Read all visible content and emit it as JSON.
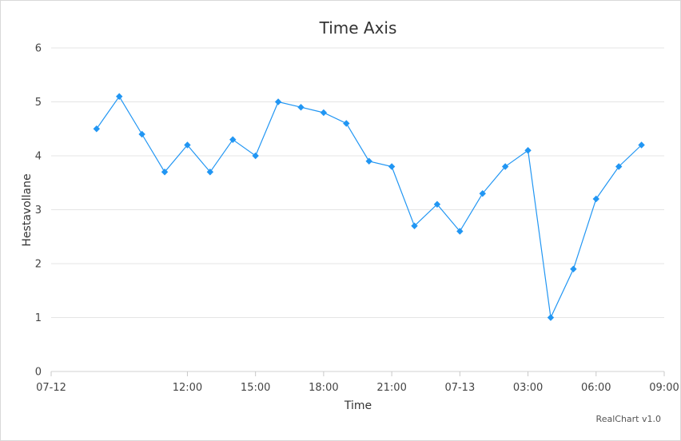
{
  "chart_data": {
    "type": "line",
    "title": "Time Axis",
    "xlabel": "Time",
    "ylabel": "Hestavollane",
    "ylim": [
      0,
      6
    ],
    "y_ticks": [
      0,
      1,
      2,
      3,
      4,
      5,
      6
    ],
    "x_range": [
      "2012-07-12 06:00",
      "2012-07-13 09:00"
    ],
    "x_ticks": [
      {
        "time": "2012-07-12 06:00",
        "label": "07-12"
      },
      {
        "time": "2012-07-12 12:00",
        "label": "12:00"
      },
      {
        "time": "2012-07-12 15:00",
        "label": "15:00"
      },
      {
        "time": "2012-07-12 18:00",
        "label": "18:00"
      },
      {
        "time": "2012-07-12 21:00",
        "label": "21:00"
      },
      {
        "time": "2012-07-13 00:00",
        "label": "07-13"
      },
      {
        "time": "2012-07-13 03:00",
        "label": "03:00"
      },
      {
        "time": "2012-07-13 06:00",
        "label": "06:00"
      },
      {
        "time": "2012-07-13 09:00",
        "label": "09:00"
      }
    ],
    "grid": true,
    "series": [
      {
        "color": "#2196f3",
        "marker": "diamond",
        "points": [
          {
            "x": "2012-07-12 08:00",
            "y": 4.5
          },
          {
            "x": "2012-07-12 09:00",
            "y": 5.1
          },
          {
            "x": "2012-07-12 10:00",
            "y": 4.4
          },
          {
            "x": "2012-07-12 11:00",
            "y": 3.7
          },
          {
            "x": "2012-07-12 12:00",
            "y": 4.2
          },
          {
            "x": "2012-07-12 13:00",
            "y": 3.7
          },
          {
            "x": "2012-07-12 14:00",
            "y": 4.3
          },
          {
            "x": "2012-07-12 15:00",
            "y": 4.0
          },
          {
            "x": "2012-07-12 16:00",
            "y": 5.0
          },
          {
            "x": "2012-07-12 17:00",
            "y": 4.9
          },
          {
            "x": "2012-07-12 18:00",
            "y": 4.8
          },
          {
            "x": "2012-07-12 19:00",
            "y": 4.6
          },
          {
            "x": "2012-07-12 20:00",
            "y": 3.9
          },
          {
            "x": "2012-07-12 21:00",
            "y": 3.8
          },
          {
            "x": "2012-07-12 22:00",
            "y": 2.7
          },
          {
            "x": "2012-07-12 23:00",
            "y": 3.1
          },
          {
            "x": "2012-07-13 00:00",
            "y": 2.6
          },
          {
            "x": "2012-07-13 01:00",
            "y": 3.3
          },
          {
            "x": "2012-07-13 02:00",
            "y": 3.8
          },
          {
            "x": "2012-07-13 03:00",
            "y": 4.1
          },
          {
            "x": "2012-07-13 04:00",
            "y": 1.0
          },
          {
            "x": "2012-07-13 05:00",
            "y": 1.9
          },
          {
            "x": "2012-07-13 06:00",
            "y": 3.2
          },
          {
            "x": "2012-07-13 07:00",
            "y": 3.8
          },
          {
            "x": "2012-07-13 08:00",
            "y": 4.2
          }
        ]
      }
    ]
  },
  "credit": "RealChart v1.0"
}
